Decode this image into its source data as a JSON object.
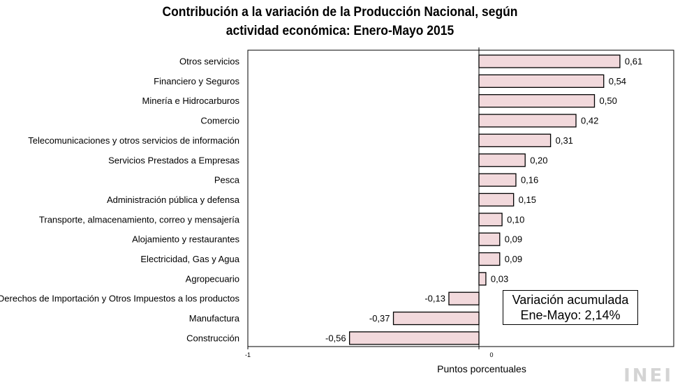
{
  "chart_data": {
    "type": "bar",
    "orientation": "horizontal",
    "title_line1": "Contribución a la variación de la Producción Nacional, según",
    "title_line2": "actividad económica: Enero-Mayo 2015",
    "xlabel": "Puntos porcentuales",
    "xlim": [
      -1,
      0.75
    ],
    "xticks": [
      -1,
      0
    ],
    "xtick_labels": [
      "-1",
      "0"
    ],
    "categories": [
      "Otros servicios",
      "Financiero y Seguros",
      "Minería e Hidrocarburos",
      "Comercio",
      "Telecomunicaciones y otros servicios de información",
      "Servicios Prestados a Empresas",
      "Pesca",
      "Administración pública y defensa",
      "Transporte, almacenamiento, correo y mensajería",
      "Alojamiento y restaurantes",
      "Electricidad, Gas y Agua",
      "Agropecuario",
      "Derechos de Importación y Otros Impuestos a los productos",
      "Manufactura",
      "Construcción"
    ],
    "values": [
      0.61,
      0.54,
      0.5,
      0.42,
      0.31,
      0.2,
      0.16,
      0.15,
      0.1,
      0.09,
      0.09,
      0.03,
      -0.13,
      -0.37,
      -0.56
    ],
    "value_labels": [
      "0,61",
      "0,54",
      "0,50",
      "0,42",
      "0,31",
      "0,20",
      "0,16",
      "0,15",
      "0,10",
      "0,09",
      "0,09",
      "0,03",
      "-0,13",
      "-0,37",
      "-0,56"
    ],
    "bar_color": "#f2d9dc",
    "bar_edge_color": "#000000",
    "annotation_line1": "Variación acumulada",
    "annotation_line2": "Ene-Mayo: 2,14%"
  },
  "source_logo": "INEI"
}
